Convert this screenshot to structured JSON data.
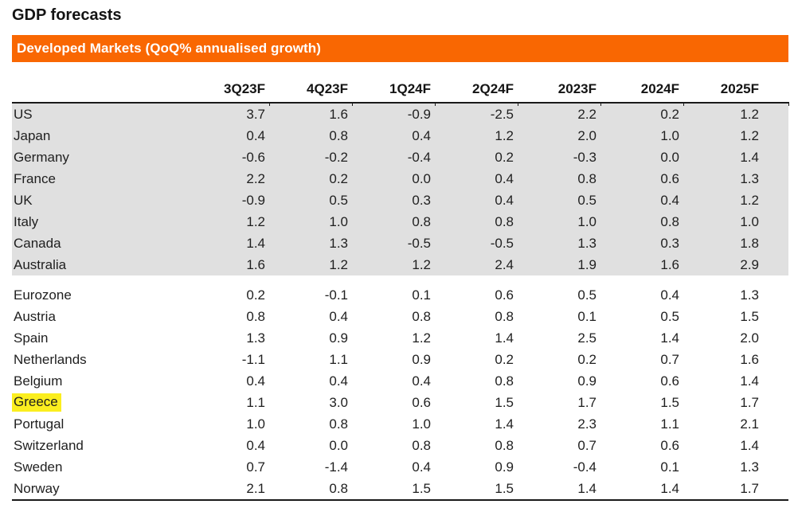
{
  "page_title": "GDP forecasts",
  "banner": {
    "label": "Developed Markets (QoQ% annualised growth)"
  },
  "colors": {
    "accent_orange": "#f96702",
    "shaded_row_gray": "#e0e0e0",
    "highlight_yellow": "#fbee1f",
    "rule_black": "#1a1a1a",
    "banner_text": "#ffffff"
  },
  "chart_data": {
    "type": "table",
    "title": "GDP forecasts",
    "subtitle": "Developed Markets (QoQ% annualised growth)",
    "columns": [
      "3Q23F",
      "4Q23F",
      "1Q24F",
      "2Q24F",
      "2023F",
      "2024F",
      "2025F"
    ],
    "groups": [
      {
        "shaded": true,
        "rows": [
          {
            "country": "US",
            "values": [
              "3.7",
              "1.6",
              "-0.9",
              "-2.5",
              "2.2",
              "0.2",
              "1.2"
            ]
          },
          {
            "country": "Japan",
            "values": [
              "0.4",
              "0.8",
              "0.4",
              "1.2",
              "2.0",
              "1.0",
              "1.2"
            ]
          },
          {
            "country": "Germany",
            "values": [
              "-0.6",
              "-0.2",
              "-0.4",
              "0.2",
              "-0.3",
              "0.0",
              "1.4"
            ]
          },
          {
            "country": "France",
            "values": [
              "2.2",
              "0.2",
              "0.0",
              "0.4",
              "0.8",
              "0.6",
              "1.3"
            ]
          },
          {
            "country": "UK",
            "values": [
              "-0.9",
              "0.5",
              "0.3",
              "0.4",
              "0.5",
              "0.4",
              "1.2"
            ]
          },
          {
            "country": "Italy",
            "values": [
              "1.2",
              "1.0",
              "0.8",
              "0.8",
              "1.0",
              "0.8",
              "1.0"
            ]
          },
          {
            "country": "Canada",
            "values": [
              "1.4",
              "1.3",
              "-0.5",
              "-0.5",
              "1.3",
              "0.3",
              "1.8"
            ]
          },
          {
            "country": "Australia",
            "values": [
              "1.6",
              "1.2",
              "1.2",
              "2.4",
              "1.9",
              "1.6",
              "2.9"
            ]
          }
        ]
      },
      {
        "shaded": false,
        "rows": [
          {
            "country": "Eurozone",
            "values": [
              "0.2",
              "-0.1",
              "0.1",
              "0.6",
              "0.5",
              "0.4",
              "1.3"
            ]
          },
          {
            "country": "Austria",
            "values": [
              "0.8",
              "0.4",
              "0.8",
              "0.8",
              "0.1",
              "0.5",
              "1.5"
            ]
          },
          {
            "country": "Spain",
            "values": [
              "1.3",
              "0.9",
              "1.2",
              "1.4",
              "2.5",
              "1.4",
              "2.0"
            ]
          },
          {
            "country": "Netherlands",
            "values": [
              "-1.1",
              "1.1",
              "0.9",
              "0.2",
              "0.2",
              "0.7",
              "1.6"
            ]
          },
          {
            "country": "Belgium",
            "values": [
              "0.4",
              "0.4",
              "0.4",
              "0.8",
              "0.9",
              "0.6",
              "1.4"
            ]
          },
          {
            "country": "Greece",
            "highlighted": true,
            "values": [
              "1.1",
              "3.0",
              "0.6",
              "1.5",
              "1.7",
              "1.5",
              "1.7"
            ]
          },
          {
            "country": "Portugal",
            "values": [
              "1.0",
              "0.8",
              "1.0",
              "1.4",
              "2.3",
              "1.1",
              "2.1"
            ]
          },
          {
            "country": "Switzerland",
            "values": [
              "0.4",
              "0.0",
              "0.8",
              "0.8",
              "0.7",
              "0.6",
              "1.4"
            ]
          },
          {
            "country": "Sweden",
            "values": [
              "0.7",
              "-1.4",
              "0.4",
              "0.9",
              "-0.4",
              "0.1",
              "1.3"
            ]
          },
          {
            "country": "Norway",
            "values": [
              "2.1",
              "0.8",
              "1.5",
              "1.5",
              "1.4",
              "1.4",
              "1.7"
            ]
          }
        ]
      }
    ]
  }
}
